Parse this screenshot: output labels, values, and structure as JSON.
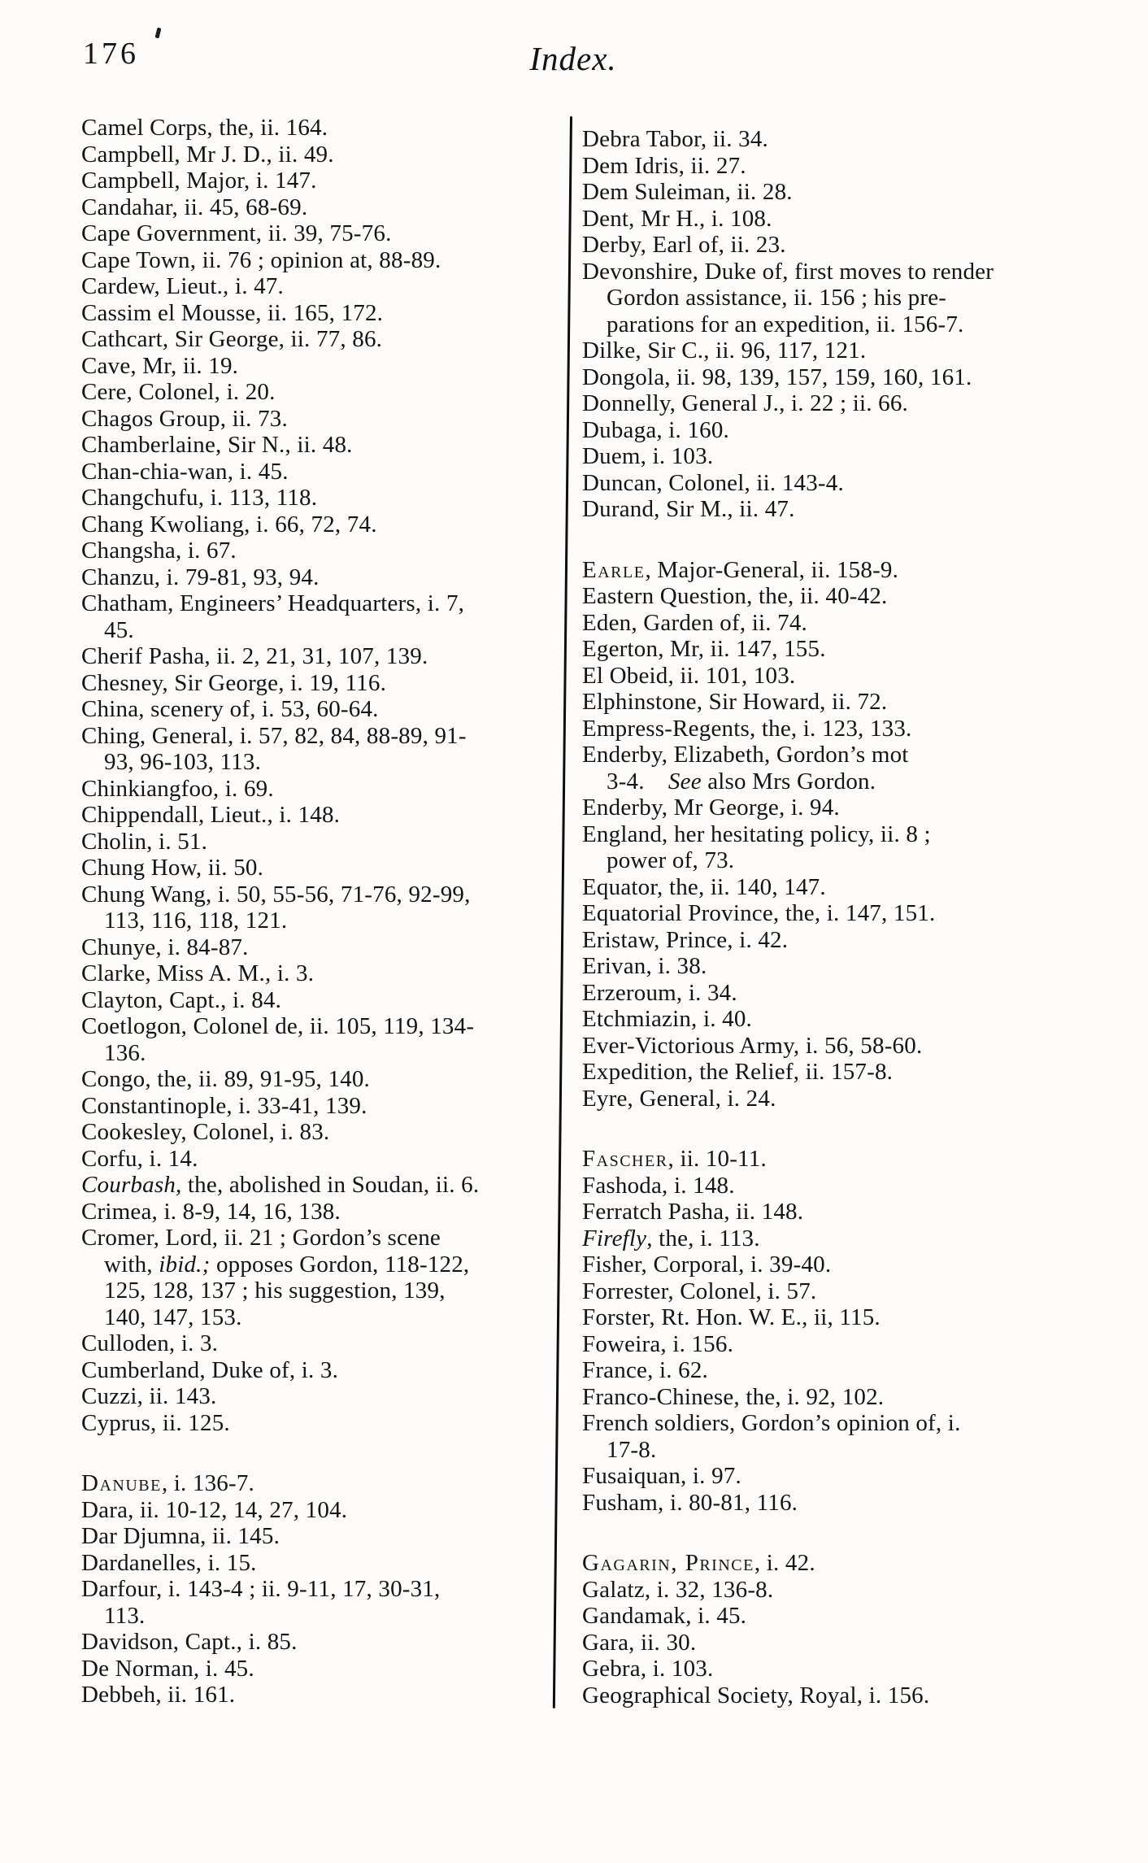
{
  "header": {
    "page_number": "176",
    "title": "Index."
  },
  "colors": {
    "ink": "#141414",
    "paper": "#fdfcfa"
  },
  "columns": {
    "left": [
      {
        "p": [
          {
            "t": "Camel Corps, the, ii. 164."
          }
        ]
      },
      {
        "p": [
          {
            "t": "Campbell, Mr J. D., ii. 49."
          }
        ]
      },
      {
        "p": [
          {
            "t": "Campbell, Major, i. 147."
          }
        ]
      },
      {
        "p": [
          {
            "t": "Candahar, ii. 45, 68-69."
          }
        ]
      },
      {
        "p": [
          {
            "t": "Cape Government, ii. 39, 75-76."
          }
        ]
      },
      {
        "p": [
          {
            "t": "Cape Town, ii. 76 ; opinion at, 88-89."
          }
        ],
        "jus": true
      },
      {
        "p": [
          {
            "t": "Cardew, Lieut., i. 47."
          }
        ]
      },
      {
        "p": [
          {
            "t": "Cassim el Mousse, ii. 165, 172."
          }
        ]
      },
      {
        "p": [
          {
            "t": "Cathcart, Sir George, ii. 77, 86."
          }
        ]
      },
      {
        "p": [
          {
            "t": "Cave, Mr, ii. 19."
          }
        ]
      },
      {
        "p": [
          {
            "t": "Cere, Colonel, i. 20."
          }
        ]
      },
      {
        "p": [
          {
            "t": "Chagos Group, ii. 73."
          }
        ]
      },
      {
        "p": [
          {
            "t": "Chamberlaine, Sir N., ii. 48."
          }
        ]
      },
      {
        "p": [
          {
            "t": "Chan-chia-wan, i. 45."
          }
        ]
      },
      {
        "p": [
          {
            "t": "Changchufu, i. 113, 118."
          }
        ]
      },
      {
        "p": [
          {
            "t": "Chang Kwoliang, i. 66, 72, 74."
          }
        ]
      },
      {
        "p": [
          {
            "t": "Changsha, i. 67."
          }
        ]
      },
      {
        "p": [
          {
            "t": "Chanzu, i. 79-81, 93, 94."
          }
        ]
      },
      {
        "p": [
          {
            "t": "Chatham, Engineers’ Headquarters, i. 7,"
          }
        ],
        "jus": true
      },
      {
        "p": [
          {
            "t": "45."
          }
        ],
        "ind": true
      },
      {
        "p": [
          {
            "t": "Cherif Pasha, ii. 2, 21, 31, 107, 139."
          }
        ]
      },
      {
        "p": [
          {
            "t": "Chesney, Sir George, i. 19, 116."
          }
        ]
      },
      {
        "p": [
          {
            "t": "China, scenery of, i. 53, 60-64."
          }
        ]
      },
      {
        "p": [
          {
            "t": "Ching, General, i. 57, 82, 84, 88-89, 91-"
          }
        ],
        "jus": true
      },
      {
        "p": [
          {
            "t": "93, 96-103, 113."
          }
        ],
        "ind": true
      },
      {
        "p": [
          {
            "t": "Chinkiangfoo, i. 69."
          }
        ]
      },
      {
        "p": [
          {
            "t": "Chippendall, Lieut., i. 148."
          }
        ]
      },
      {
        "p": [
          {
            "t": "Cholin, i. 51."
          }
        ]
      },
      {
        "p": [
          {
            "t": "Chung How, ii. 50."
          }
        ]
      },
      {
        "p": [
          {
            "t": "Chung Wang, i. 50, 55-56, 71-76, 92-99,"
          }
        ],
        "jus": true
      },
      {
        "p": [
          {
            "t": "113, 116, 118, 121."
          }
        ],
        "ind": true
      },
      {
        "p": [
          {
            "t": "Chunye, i. 84-87."
          }
        ]
      },
      {
        "p": [
          {
            "t": "Clarke, Miss A. M., i. 3."
          }
        ]
      },
      {
        "p": [
          {
            "t": "Clayton, Capt., i. 84."
          }
        ]
      },
      {
        "p": [
          {
            "t": "Coetlogon, Colonel de, ii. 105, 119, 134-"
          }
        ],
        "jus": true
      },
      {
        "p": [
          {
            "t": "136."
          }
        ],
        "ind": true
      },
      {
        "p": [
          {
            "t": "Congo, the, ii. 89, 91-95, 140."
          }
        ]
      },
      {
        "p": [
          {
            "t": "Constantinople, i. 33-41, 139."
          }
        ]
      },
      {
        "p": [
          {
            "t": "Cookesley, Colonel, i. 83."
          }
        ]
      },
      {
        "p": [
          {
            "t": "Corfu, i. 14."
          }
        ]
      },
      {
        "p": [
          {
            "t": "Courbash,",
            "f": "it"
          },
          {
            "t": " the, abolished in Soudan, ii. 6."
          }
        ],
        "jus": true
      },
      {
        "p": [
          {
            "t": "Crimea, i. 8-9, 14, 16, 138."
          }
        ]
      },
      {
        "p": [
          {
            "t": "Cromer, Lord, ii. 21 ; Gordon’s scene"
          }
        ],
        "jus": true
      },
      {
        "p": [
          {
            "t": "with, "
          },
          {
            "t": "ibid.;",
            "f": "it"
          },
          {
            "t": " opposes Gordon, 118-122,"
          }
        ],
        "ind": true,
        "jus": true
      },
      {
        "p": [
          {
            "t": "125, 128, 137 ; his suggestion, 139,"
          }
        ],
        "ind": true,
        "jus": true
      },
      {
        "p": [
          {
            "t": "140, 147, 153."
          }
        ],
        "ind": true
      },
      {
        "p": [
          {
            "t": "Culloden, i. 3."
          }
        ]
      },
      {
        "p": [
          {
            "t": "Cumberland, Duke of, i. 3."
          }
        ]
      },
      {
        "p": [
          {
            "t": "Cuzzi, ii. 143."
          }
        ]
      },
      {
        "p": [
          {
            "t": "Cyprus, ii. 125."
          }
        ]
      },
      {
        "gap": true
      },
      {
        "p": [
          {
            "t": "Danube",
            "f": "sc"
          },
          {
            "t": ", i. 136-7."
          }
        ]
      },
      {
        "p": [
          {
            "t": "Dara, ii. 10-12, 14, 27, 104."
          }
        ]
      },
      {
        "p": [
          {
            "t": "Dar Djumna, ii. 145."
          }
        ]
      },
      {
        "p": [
          {
            "t": "Dardanelles, i. 15."
          }
        ]
      },
      {
        "p": [
          {
            "t": "Darfour, i. 143-4 ; ii. 9-11, 17, 30-31,"
          }
        ],
        "jus": true
      },
      {
        "p": [
          {
            "t": "113."
          }
        ],
        "ind": true
      },
      {
        "p": [
          {
            "t": "Davidson, Capt., i. 85."
          }
        ]
      },
      {
        "p": [
          {
            "t": "De Norman, i. 45."
          }
        ]
      },
      {
        "p": [
          {
            "t": "Debbeh, ii. 161."
          }
        ]
      }
    ],
    "right": [
      {
        "p": [
          {
            "t": "Debra Tabor, ii. 34."
          }
        ]
      },
      {
        "p": [
          {
            "t": "Dem Idris, ii. 27."
          }
        ]
      },
      {
        "p": [
          {
            "t": "Dem Suleiman, ii. 28."
          }
        ]
      },
      {
        "p": [
          {
            "t": "Dent, Mr H., i. 108."
          }
        ]
      },
      {
        "p": [
          {
            "t": "Derby, Earl of, ii. 23."
          }
        ]
      },
      {
        "p": [
          {
            "t": "Devonshire, Duke of, first moves to render"
          }
        ],
        "jus": true
      },
      {
        "p": [
          {
            "t": "Gordon assistance, ii. 156 ; his pre-"
          }
        ],
        "ind": true,
        "jus": true
      },
      {
        "p": [
          {
            "t": "parations for an expedition, ii. 156-7."
          }
        ],
        "ind": true,
        "jus": true
      },
      {
        "p": [
          {
            "t": "Dilke, Sir C., ii. 96, 117, 121."
          }
        ]
      },
      {
        "p": [
          {
            "t": "Dongola, ii. 98, 139, 157, 159, 160, 161."
          }
        ],
        "jus": true
      },
      {
        "p": [
          {
            "t": "Donnelly, General J., i. 22 ; ii. 66."
          }
        ]
      },
      {
        "p": [
          {
            "t": "Dubaga, i. 160."
          }
        ]
      },
      {
        "p": [
          {
            "t": "Duem, i. 103."
          }
        ]
      },
      {
        "p": [
          {
            "t": "Duncan, Colonel, ii. 143-4."
          }
        ]
      },
      {
        "p": [
          {
            "t": "Durand, Sir M., ii. 47."
          }
        ]
      },
      {
        "gap": true
      },
      {
        "p": [
          {
            "t": "Earle",
            "f": "sc"
          },
          {
            "t": ", Major-General, ii. 158-9."
          }
        ]
      },
      {
        "p": [
          {
            "t": "Eastern Question, the, ii. 40-42."
          }
        ]
      },
      {
        "p": [
          {
            "t": "Eden, Garden of, ii. 74."
          }
        ]
      },
      {
        "p": [
          {
            "t": "Egerton, Mr, ii. 147, 155."
          }
        ]
      },
      {
        "p": [
          {
            "t": "El Obeid, ii. 101, 103."
          }
        ]
      },
      {
        "p": [
          {
            "t": "Elphinstone, Sir Howard, ii. 72."
          }
        ]
      },
      {
        "p": [
          {
            "t": "Empress-Regents, the, i. 123, 133."
          }
        ]
      },
      {
        "p": [
          {
            "t": "Enderby, Elizabeth, Gordon’s mot"
          }
        ]
      },
      {
        "p": [
          {
            "t": "3-4. "
          },
          {
            "t": "See",
            "f": "it"
          },
          {
            "t": " also Mrs Gordon."
          }
        ],
        "ind": true
      },
      {
        "p": [
          {
            "t": "Enderby, Mr George, i. 94."
          }
        ]
      },
      {
        "p": [
          {
            "t": "England, her hesitating policy, ii. 8 ;"
          }
        ],
        "jus": true
      },
      {
        "p": [
          {
            "t": "power of, 73."
          }
        ],
        "ind": true
      },
      {
        "p": [
          {
            "t": "Equator, the, ii. 140, 147."
          }
        ]
      },
      {
        "p": [
          {
            "t": "Equatorial Province, the, i. 147, 151."
          }
        ]
      },
      {
        "p": [
          {
            "t": "Eristaw, Prince, i. 42."
          }
        ]
      },
      {
        "p": [
          {
            "t": "Erivan, i. 38."
          }
        ]
      },
      {
        "p": [
          {
            "t": "Erzeroum, i. 34."
          }
        ]
      },
      {
        "p": [
          {
            "t": "Etchmiazin, i. 40."
          }
        ]
      },
      {
        "p": [
          {
            "t": "Ever-Victorious Army, i. 56, 58-60."
          }
        ]
      },
      {
        "p": [
          {
            "t": "Expedition, the Relief, ii. 157-8."
          }
        ]
      },
      {
        "p": [
          {
            "t": "Eyre, General, i. 24."
          }
        ]
      },
      {
        "gap": true
      },
      {
        "p": [
          {
            "t": "Fascher",
            "f": "sc"
          },
          {
            "t": ", ii. 10-11."
          }
        ]
      },
      {
        "p": [
          {
            "t": "Fashoda, i. 148."
          }
        ]
      },
      {
        "p": [
          {
            "t": "Ferratch Pasha, ii. 148."
          }
        ]
      },
      {
        "p": [
          {
            "t": "Firefly",
            "f": "it"
          },
          {
            "t": ", the, i. 113."
          }
        ]
      },
      {
        "p": [
          {
            "t": "Fisher, Corporal, i. 39-40."
          }
        ]
      },
      {
        "p": [
          {
            "t": "Forrester, Colonel, i. 57."
          }
        ]
      },
      {
        "p": [
          {
            "t": "Forster, Rt. Hon. W. E., ii, 115."
          }
        ]
      },
      {
        "p": [
          {
            "t": "Foweira, i. 156."
          }
        ]
      },
      {
        "p": [
          {
            "t": "France, i. 62."
          }
        ]
      },
      {
        "p": [
          {
            "t": "Franco-Chinese, the, i. 92, 102."
          }
        ]
      },
      {
        "p": [
          {
            "t": "French soldiers, Gordon’s opinion of, i."
          }
        ],
        "jus": true
      },
      {
        "p": [
          {
            "t": "17-8."
          }
        ],
        "ind": true
      },
      {
        "p": [
          {
            "t": "Fusaiquan, i. 97."
          }
        ]
      },
      {
        "p": [
          {
            "t": "Fusham, i. 80-81, 116."
          }
        ]
      },
      {
        "gap": true
      },
      {
        "p": [
          {
            "t": "Gagarin, Prince",
            "f": "sc"
          },
          {
            "t": ", i. 42."
          }
        ]
      },
      {
        "p": [
          {
            "t": "Galatz, i. 32, 136-8."
          }
        ]
      },
      {
        "p": [
          {
            "t": "Gandamak, i. 45."
          }
        ]
      },
      {
        "p": [
          {
            "t": "Gara, ii. 30."
          }
        ]
      },
      {
        "p": [
          {
            "t": "Gebra, i. 103."
          }
        ]
      },
      {
        "p": [
          {
            "t": "Geographical Society, Royal, i. 156."
          }
        ]
      }
    ]
  }
}
